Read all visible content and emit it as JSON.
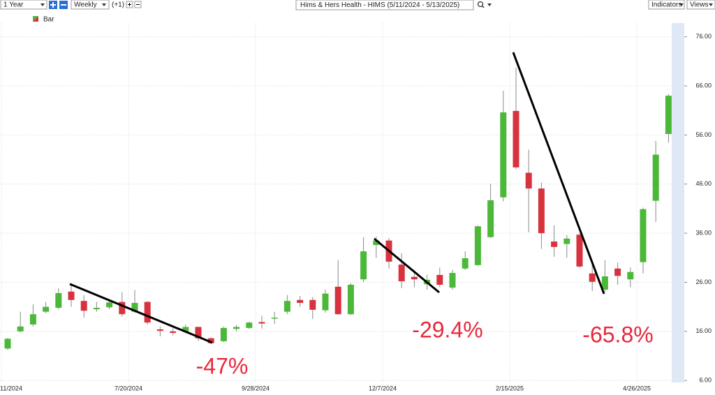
{
  "toolbar": {
    "range": "1 Year",
    "interval": "Weekly",
    "offset": "(+1)",
    "symbol": "Hims & Hers Health - HIMS (5/11/2024 - 5/13/2025)",
    "indicators": "Indicators",
    "views": "Views"
  },
  "chart_data": {
    "type": "candlestick",
    "legend": "Bar",
    "categories": [
      "11/2024",
      null,
      null,
      null,
      null,
      null,
      null,
      null,
      null,
      null,
      "7/20/2024",
      null,
      null,
      null,
      null,
      null,
      null,
      null,
      null,
      null,
      "9/28/2024",
      null,
      null,
      null,
      null,
      null,
      null,
      null,
      null,
      null,
      "12/7/2024",
      null,
      null,
      null,
      null,
      null,
      null,
      null,
      null,
      null,
      "2/15/2025",
      null,
      null,
      null,
      null,
      null,
      null,
      null,
      null,
      null,
      "4/26/2025",
      null,
      null
    ],
    "open": [
      12.5,
      16,
      17.4,
      20,
      20.8,
      24.1,
      22.2,
      20.5,
      20.9,
      22,
      20,
      22,
      16.4,
      16,
      15.9,
      16.9,
      14.6,
      14,
      16.5,
      16.7,
      17.9,
      18.7,
      20,
      22.4,
      22.4,
      20.3,
      25.1,
      19.5,
      26.6,
      33.6,
      34.5,
      29.6,
      27.1,
      25.6,
      27.5,
      24.9,
      28.8,
      29.5,
      35.2,
      43.3,
      60.9,
      48.3,
      45.1,
      34.3,
      33.8,
      35.7,
      27.8,
      24.5,
      28.8,
      26.6,
      30.1,
      42.6,
      56.2
    ],
    "high": [
      14.7,
      20,
      21.5,
      22,
      24.8,
      25.5,
      23.4,
      22,
      22.6,
      24,
      24.4,
      22.2,
      17,
      16.6,
      17.4,
      17,
      14.8,
      17,
      17.3,
      18,
      19.2,
      20,
      23.4,
      23.2,
      23,
      24.5,
      30.5,
      25.8,
      35.2,
      35.3,
      35,
      31.9,
      28.5,
      27.5,
      29,
      28.5,
      32.3,
      37.6,
      46.1,
      65,
      69.7,
      53,
      46.3,
      37.6,
      35.6,
      36,
      29.6,
      30.5,
      30,
      29,
      41.2,
      54.8,
      64.3
    ],
    "low": [
      12.2,
      15.8,
      17,
      19.7,
      20.5,
      21,
      18.8,
      20,
      20.5,
      19,
      19.8,
      17.4,
      15,
      15.2,
      15.6,
      14,
      13.4,
      13.8,
      16,
      16.5,
      16.6,
      17.5,
      19.5,
      21,
      18.5,
      19.8,
      19.4,
      19.3,
      26,
      31,
      28.8,
      24.8,
      25,
      24.5,
      25,
      24.5,
      28.5,
      29.3,
      35,
      42.5,
      49,
      36.2,
      32.8,
      31.2,
      31,
      29,
      24.2,
      24,
      25.5,
      25,
      27.8,
      38.3,
      54.4
    ],
    "close": [
      14.5,
      17,
      19.5,
      21,
      23.8,
      22.4,
      20.2,
      20.8,
      21.9,
      19.5,
      21.8,
      17.8,
      16.1,
      15.7,
      16.9,
      14.6,
      13.6,
      16.7,
      16.9,
      17.8,
      17.6,
      18.8,
      22.2,
      21.8,
      20.4,
      23.7,
      19.5,
      25.5,
      32.3,
      34.5,
      30.2,
      26.2,
      26.6,
      26.5,
      25.5,
      27.9,
      30.9,
      37.4,
      42.7,
      60.6,
      49.4,
      45.1,
      36,
      33.2,
      34.9,
      29.2,
      26.1,
      27.2,
      27.3,
      28.1,
      40.9,
      52,
      64
    ],
    "up_color": "#4cb83a",
    "down_color": "#d8323e",
    "ylim": [
      5.6,
      78.8
    ],
    "yticks": [
      {
        "value": 6,
        "label": "6.00"
      },
      {
        "value": 16,
        "label": "16.00"
      },
      {
        "value": 26,
        "label": "26.00"
      },
      {
        "value": 36,
        "label": "36.00"
      },
      {
        "value": 46,
        "label": "46.00"
      },
      {
        "value": 56,
        "label": "56.00"
      },
      {
        "value": 66,
        "label": "66.00"
      },
      {
        "value": 76,
        "label": "76.00"
      }
    ],
    "grid": true,
    "annotations": [
      "-47%",
      "-29.4%",
      "-65.8%"
    ],
    "annotation_color": "#e8283c"
  }
}
